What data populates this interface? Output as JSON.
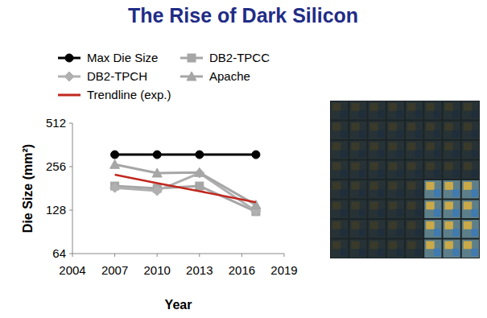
{
  "chart_data": {
    "type": "line",
    "title": "The Rise of Dark Silicon",
    "x_label": "Year",
    "y_label": "Die Size (mm²)",
    "x": [
      2007,
      2010,
      2013,
      2017
    ],
    "series": [
      {
        "name": "Max Die Size",
        "color": "#000000",
        "marker": "circle",
        "line_style": "solid",
        "values": [
          310,
          310,
          310,
          310
        ]
      },
      {
        "name": "DB2-TPCC",
        "color": "#a6a6a6",
        "marker": "square",
        "line_style": "solid",
        "values": [
          188,
          181,
          188,
          125
        ]
      },
      {
        "name": "DB2-TPCH",
        "color": "#b0b0b0",
        "marker": "diamond",
        "line_style": "solid",
        "values": [
          183,
          174,
          231,
          126
        ]
      },
      {
        "name": "Apache",
        "color": "#a6a6a6",
        "marker": "triangle",
        "line_style": "solid",
        "values": [
          265,
          231,
          233,
          139
        ]
      },
      {
        "name": "Trendline (exp.)",
        "color": "#c0281e",
        "marker": "none",
        "line_style": "solid",
        "values": [
          225,
          197,
          173,
          145
        ]
      }
    ],
    "xlim": [
      2004,
      2019
    ],
    "xticks": [
      2004,
      2007,
      2010,
      2013,
      2016,
      2019
    ],
    "ylim": [
      64,
      512
    ],
    "yticks": [
      64,
      128,
      256,
      512
    ],
    "log": "y",
    "grid": false,
    "legend": "top"
  }
}
